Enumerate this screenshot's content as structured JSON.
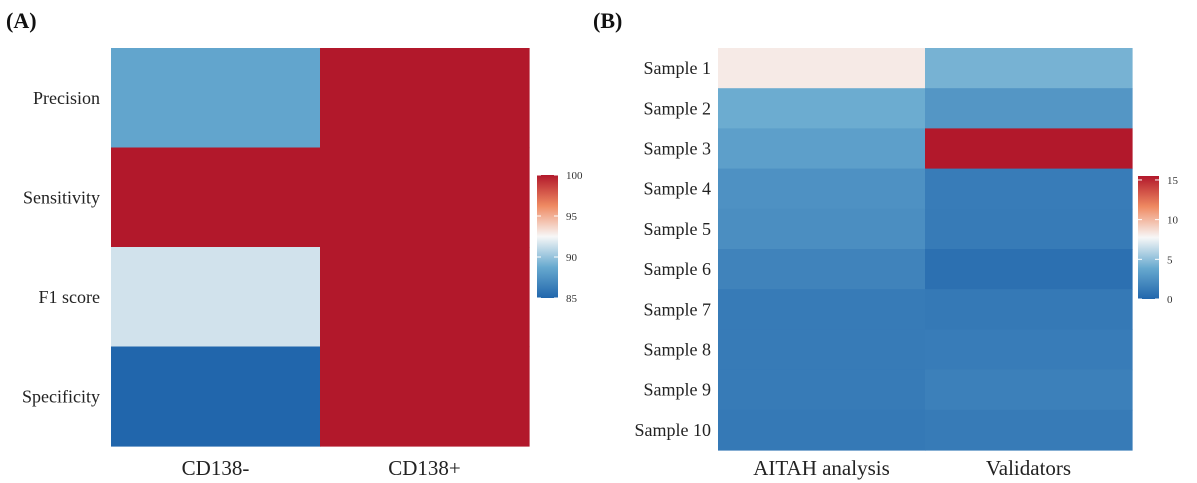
{
  "chart_data": [
    {
      "type": "heatmap",
      "panel_label": "(A)",
      "columns": [
        "CD138-",
        "CD138+"
      ],
      "rows": [
        "Precision",
        "Sensitivity",
        "F1 score",
        "Specificity"
      ],
      "values": [
        [
          88.5,
          100
        ],
        [
          100,
          100
        ],
        [
          91.5,
          100
        ],
        [
          85,
          100
        ]
      ],
      "scale": {
        "min": 85,
        "max": 100,
        "ticks": [
          85,
          90,
          95,
          100
        ]
      }
    },
    {
      "type": "heatmap",
      "panel_label": "(B)",
      "columns": [
        "AITAH  analysis",
        "Validators"
      ],
      "rows": [
        "Sample 1",
        "Sample 2",
        "Sample 3",
        "Sample 4",
        "Sample 5",
        "Sample 6",
        "Sample 7",
        "Sample 8",
        "Sample 9",
        "Sample 10"
      ],
      "values": [
        [
          8.2,
          4.3
        ],
        [
          4.0,
          2.8
        ],
        [
          3.3,
          15.5
        ],
        [
          2.5,
          1.3
        ],
        [
          2.3,
          1.2
        ],
        [
          1.7,
          0.6
        ],
        [
          1.2,
          1.1
        ],
        [
          1.2,
          1.3
        ],
        [
          1.2,
          1.5
        ],
        [
          1.1,
          1.2
        ]
      ],
      "scale": {
        "min": 0,
        "max": 15.5,
        "ticks": [
          0,
          5,
          10,
          15
        ]
      }
    }
  ]
}
